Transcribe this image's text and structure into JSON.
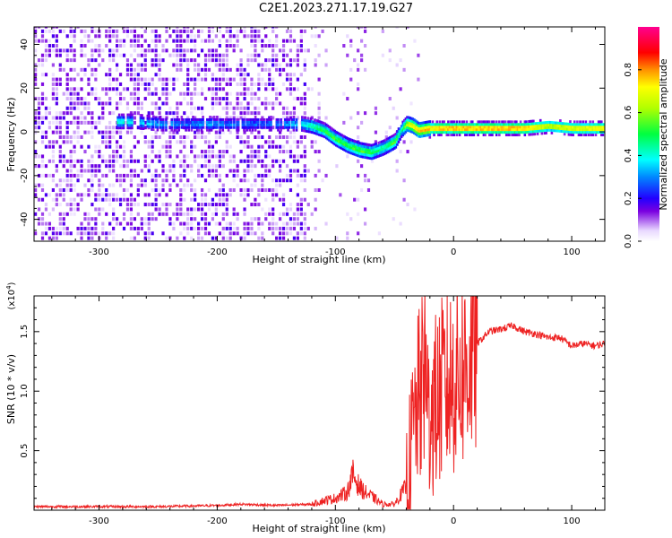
{
  "title": "C2E1.2023.271.17.19.G27",
  "chart_data": [
    {
      "type": "heatmap",
      "panel": "top",
      "xlabel": "Height of straight line (km)",
      "ylabel": "Frequency (Hz)",
      "xlim": [
        -355,
        128
      ],
      "ylim": [
        -50,
        48
      ],
      "x_ticks": [
        -300,
        -200,
        -100,
        0,
        100
      ],
      "y_ticks": [
        -40,
        -20,
        0,
        20,
        40
      ],
      "colorbar": {
        "label": "Normalized spectral amplitude",
        "range": [
          0,
          1
        ],
        "ticks": [
          0.0,
          0.2,
          0.4,
          0.6,
          0.8
        ]
      },
      "noise_region_x": [
        -355,
        -125
      ],
      "ridge": {
        "x": [
          -285,
          -270,
          -250,
          -230,
          -210,
          -190,
          -170,
          -150,
          -130,
          -120,
          -110,
          -100,
          -90,
          -80,
          -70,
          -60,
          -50,
          -45,
          -40,
          -35,
          -30,
          -20,
          -10,
          0,
          20,
          40,
          60,
          80,
          100,
          128
        ],
        "y": [
          4,
          4,
          3,
          3,
          3,
          3,
          3,
          3,
          3,
          2,
          0,
          -4,
          -7,
          -9,
          -10,
          -8,
          -5,
          0,
          3,
          2,
          0,
          1,
          1,
          1,
          1,
          1,
          1,
          2,
          1,
          1
        ],
        "amplitude": [
          0.45,
          0.4,
          0.35,
          0.3,
          0.35,
          0.3,
          0.3,
          0.3,
          0.4,
          0.5,
          0.55,
          0.6,
          0.55,
          0.6,
          0.55,
          0.5,
          0.6,
          0.45,
          0.7,
          0.8,
          0.85,
          0.85,
          0.9,
          0.9,
          0.9,
          0.9,
          0.9,
          0.75,
          0.8,
          0.85
        ]
      }
    },
    {
      "type": "line",
      "panel": "bottom",
      "xlabel": "Height of straight line (km)",
      "ylabel": "SNR (10 * v/v)",
      "multiplier_label": "(x10",
      "multiplier_exp": "4",
      "xlim": [
        -355,
        128
      ],
      "ylim": [
        0,
        1.8
      ],
      "x_ticks": [
        -300,
        -200,
        -100,
        0,
        100
      ],
      "y_ticks": [
        0.5,
        1.0,
        1.5
      ],
      "y_tick_labels": [
        "0.5",
        "1.0",
        "1.5"
      ],
      "series": [
        {
          "color": "#ee2222",
          "x": [
            -355,
            -300,
            -250,
            -200,
            -180,
            -150,
            -120,
            -110,
            -100,
            -90,
            -85,
            -80,
            -75,
            -70,
            -60,
            -50,
            -40,
            -35,
            -30,
            -25,
            -20,
            -10,
            0,
            10,
            20,
            30,
            40,
            50,
            60,
            70,
            80,
            90,
            100,
            110,
            120,
            128
          ],
          "y": [
            0.03,
            0.03,
            0.03,
            0.04,
            0.05,
            0.04,
            0.05,
            0.08,
            0.1,
            0.15,
            0.3,
            0.2,
            0.15,
            0.12,
            0.05,
            0.05,
            0.2,
            0.6,
            0.9,
            1.1,
            0.8,
            1.0,
            1.1,
            1.2,
            1.4,
            1.5,
            1.52,
            1.55,
            1.5,
            1.48,
            1.45,
            1.45,
            1.38,
            1.4,
            1.38,
            1.4
          ]
        }
      ]
    }
  ]
}
